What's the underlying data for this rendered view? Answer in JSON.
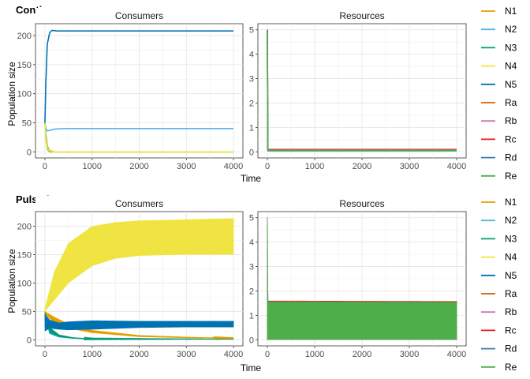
{
  "figure": {
    "xlabel": "Time",
    "ylabel": "Population size"
  },
  "chart_data": [
    {
      "type": "line",
      "row_title": "Continuous",
      "panel_title": "Consumers",
      "xlim": [
        0,
        4000
      ],
      "ylim": [
        0,
        210
      ],
      "xticks": [
        0,
        1000,
        2000,
        3000,
        4000
      ],
      "yticks": [
        0,
        50,
        100,
        150,
        200
      ],
      "series": [
        {
          "name": "N1",
          "x": [
            0,
            20,
            50,
            100,
            200,
            4000
          ],
          "y": [
            50,
            30,
            10,
            2,
            0,
            0
          ]
        },
        {
          "name": "N2",
          "x": [
            0,
            20,
            50,
            100,
            200,
            400,
            4000
          ],
          "y": [
            50,
            40,
            36,
            37,
            39,
            40,
            40
          ]
        },
        {
          "name": "N3",
          "x": [
            0,
            20,
            50,
            100,
            4000
          ],
          "y": [
            50,
            25,
            5,
            0,
            0
          ]
        },
        {
          "name": "N4",
          "x": [
            0,
            20,
            50,
            100,
            200,
            4000
          ],
          "y": [
            50,
            20,
            6,
            1,
            0,
            0
          ]
        },
        {
          "name": "N5",
          "x": [
            0,
            20,
            50,
            100,
            150,
            250,
            4000
          ],
          "y": [
            50,
            120,
            185,
            205,
            209,
            208,
            208
          ]
        }
      ]
    },
    {
      "type": "line",
      "panel_title": "Resources",
      "xlim": [
        0,
        4000
      ],
      "ylim": [
        0,
        5
      ],
      "xticks": [
        0,
        1000,
        2000,
        3000,
        4000
      ],
      "yticks": [
        0,
        1,
        2,
        3,
        4,
        5
      ],
      "series": [
        {
          "name": "Ra",
          "x": [
            0,
            10,
            4000
          ],
          "y": [
            5,
            0.1,
            0.1
          ]
        },
        {
          "name": "Rb",
          "x": [
            0,
            10,
            4000
          ],
          "y": [
            5,
            0.08,
            0.08
          ]
        },
        {
          "name": "Rc",
          "x": [
            0,
            10,
            4000
          ],
          "y": [
            5,
            0.06,
            0.06
          ]
        },
        {
          "name": "Rd",
          "x": [
            0,
            10,
            4000
          ],
          "y": [
            5,
            0.05,
            0.05
          ]
        },
        {
          "name": "Re",
          "x": [
            0,
            10,
            4000
          ],
          "y": [
            5,
            0.04,
            0.04
          ]
        }
      ]
    },
    {
      "type": "line",
      "row_title": "Pulsed",
      "panel_title": "Consumers",
      "xlim": [
        0,
        4000
      ],
      "ylim": [
        0,
        215
      ],
      "xticks": [
        0,
        1000,
        2000,
        3000,
        4000
      ],
      "yticks": [
        0,
        50,
        100,
        150,
        200
      ],
      "series": [
        {
          "name": "N1",
          "x": [
            0,
            200,
            500,
            1000,
            2000,
            3000,
            4000
          ],
          "y_low": [
            45,
            30,
            20,
            12,
            5,
            3,
            2
          ],
          "y_high": [
            50,
            40,
            28,
            17,
            8,
            5,
            3
          ]
        },
        {
          "name": "N2",
          "x": [
            0,
            100,
            300,
            600,
            1000,
            4000
          ],
          "y_low": [
            40,
            10,
            4,
            2,
            1,
            1
          ],
          "y_high": [
            48,
            20,
            8,
            4,
            2,
            1
          ]
        },
        {
          "name": "N3",
          "x": [
            0,
            100,
            300,
            600,
            1000,
            4000
          ],
          "y_low": [
            40,
            12,
            5,
            2,
            1,
            1
          ],
          "y_high": [
            48,
            22,
            9,
            4,
            2,
            1
          ]
        },
        {
          "name": "N4",
          "x": [
            0,
            200,
            500,
            1000,
            1500,
            2000,
            3000,
            4000
          ],
          "y_low": [
            50,
            70,
            100,
            130,
            143,
            148,
            150,
            150
          ],
          "y_high": [
            55,
            120,
            170,
            200,
            207,
            210,
            212,
            214
          ]
        },
        {
          "name": "N5",
          "x": [
            0,
            100,
            300,
            500,
            1000,
            2000,
            3000,
            4000
          ],
          "y_low": [
            15,
            20,
            18,
            17,
            18,
            21,
            22,
            22
          ],
          "y_high": [
            45,
            35,
            30,
            32,
            34,
            33,
            33,
            33
          ]
        }
      ]
    },
    {
      "type": "line",
      "panel_title": "Resources",
      "xlim": [
        0,
        4000
      ],
      "ylim": [
        0,
        5
      ],
      "xticks": [
        0,
        1000,
        2000,
        3000,
        4000
      ],
      "yticks": [
        0,
        1,
        2,
        3,
        4,
        5
      ],
      "series": [
        {
          "name": "Ra",
          "x": [
            0,
            10,
            4000
          ],
          "y_low": [
            0,
            0,
            0
          ],
          "y_high": [
            5,
            1.6,
            1.58
          ]
        },
        {
          "name": "Rb",
          "x": [
            0,
            10,
            4000
          ],
          "y_low": [
            0,
            0,
            0
          ],
          "y_high": [
            5,
            1.57,
            1.56
          ]
        },
        {
          "name": "Rc",
          "x": [
            0,
            10,
            4000
          ],
          "y_low": [
            0,
            0,
            0
          ],
          "y_high": [
            5,
            1.58,
            1.57
          ]
        },
        {
          "name": "Rd",
          "x": [
            0,
            10,
            4000
          ],
          "y_low": [
            0,
            0,
            0
          ],
          "y_high": [
            5,
            1.56,
            1.55
          ]
        },
        {
          "name": "Re",
          "x": [
            0,
            10,
            4000
          ],
          "y_low": [
            0,
            0,
            0
          ],
          "y_high": [
            5,
            1.55,
            1.54
          ]
        }
      ]
    }
  ],
  "legends": [
    {
      "items": [
        "N1",
        "N2",
        "N3",
        "N4",
        "N5",
        "Ra",
        "Rb",
        "Rc",
        "Rd",
        "Re"
      ]
    },
    {
      "items": [
        "N1",
        "N2",
        "N3",
        "N4",
        "N5",
        "Ra",
        "Rb",
        "Rc",
        "Rd",
        "Re"
      ]
    }
  ],
  "colors": {
    "N1": "#E69F00",
    "N2": "#56B4E9",
    "N3": "#009E73",
    "N4": "#F0E442",
    "N5": "#0072B2",
    "Ra": "#D55E00",
    "Rb": "#CC79A7",
    "Rc": "#E31A1C",
    "Rd": "#377EB8",
    "Re": "#4DAF4A"
  }
}
